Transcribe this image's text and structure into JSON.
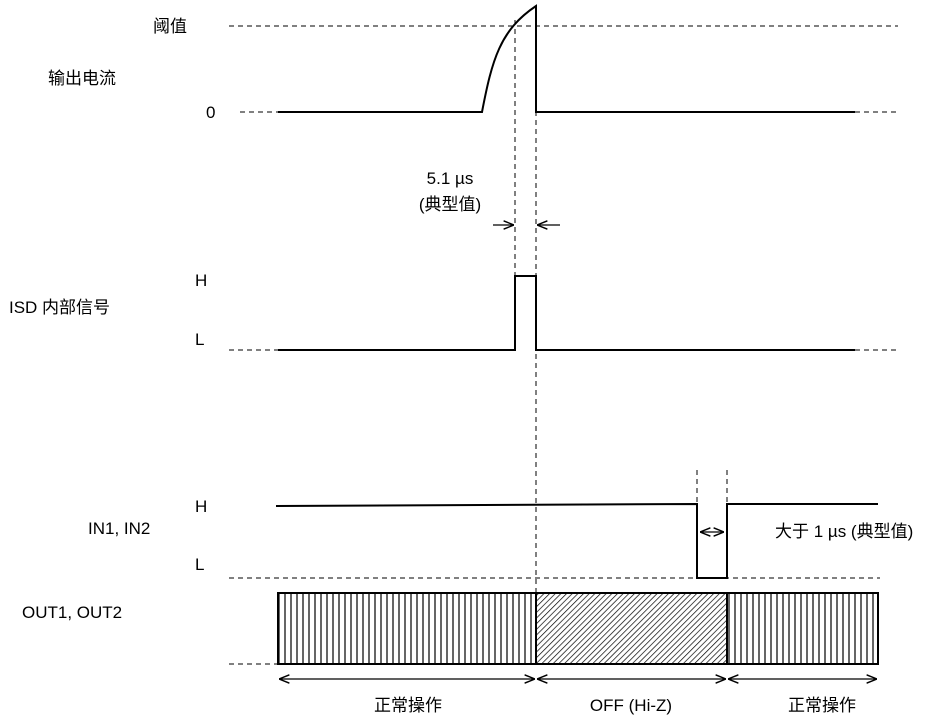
{
  "labels": {
    "output_current": "输出电流",
    "isd_signal": "ISD 内部信号",
    "in_signal": "IN1, IN2",
    "out_signal": "OUT1, OUT2"
  },
  "levels": {
    "threshold": "阈值",
    "zero": "0",
    "isd_high": "H",
    "isd_low": "L",
    "in_high": "H",
    "in_low": "L"
  },
  "annotations": {
    "delay_value": "5.1 µs",
    "delay_note": "(典型值)",
    "pulse_width": "大于 1 µs (典型值)"
  },
  "phases": {
    "normal_1": "正常操作",
    "off": "OFF (Hi-Z)",
    "normal_2": "正常操作"
  }
}
